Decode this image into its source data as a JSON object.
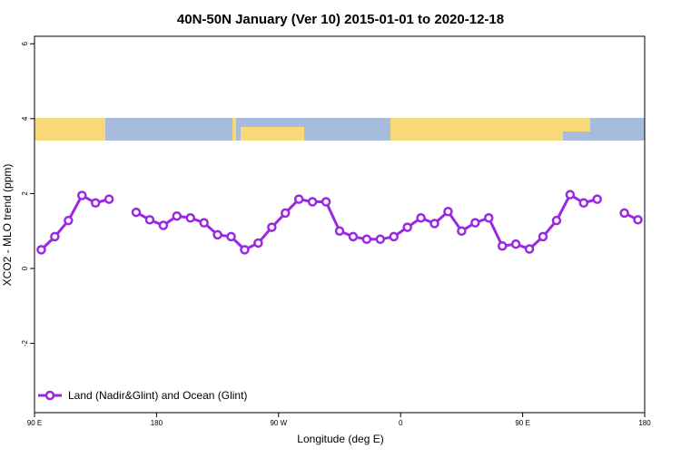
{
  "chart_data": {
    "type": "line",
    "title": "40N-50N January (Ver 10)   2015-01-01 to 2020-12-18",
    "x_label": "Longitude (deg E)",
    "y_label": "XCO2 - MLO trend (ppm)",
    "x": [
      95,
      105,
      115,
      125,
      135,
      145,
      155,
      165,
      175,
      185,
      195,
      205,
      215,
      225,
      235,
      245,
      255,
      265,
      275,
      285,
      295,
      305,
      315,
      325,
      335,
      345,
      355,
      365,
      375,
      385,
      395,
      405,
      415,
      425,
      435,
      445,
      455,
      465,
      475,
      485,
      495,
      505,
      515,
      525,
      535
    ],
    "series": [
      {
        "name": "Land (Nadir&Glint) and Ocean (Glint)",
        "color": "#9a28e0",
        "values": [
          0.5,
          0.85,
          1.28,
          1.95,
          1.75,
          1.85,
          null,
          1.5,
          1.3,
          1.15,
          1.4,
          1.35,
          1.22,
          0.9,
          0.85,
          0.5,
          0.68,
          1.1,
          1.48,
          1.85,
          1.78,
          1.78,
          1.0,
          0.85,
          0.78,
          0.78,
          0.85,
          1.1,
          1.35,
          1.2,
          1.52,
          1.0,
          1.22,
          1.35,
          0.6,
          0.65,
          0.52,
          0.85,
          1.28,
          1.97,
          1.75,
          1.85,
          null,
          1.48,
          1.3
        ]
      }
    ],
    "xlim": [
      90,
      540
    ],
    "xticks": [
      {
        "value": 90,
        "label": "90 E"
      },
      {
        "value": 180,
        "label": "180"
      },
      {
        "value": 270,
        "label": "90 W"
      },
      {
        "value": 360,
        "label": "0"
      },
      {
        "value": 450,
        "label": "90 E"
      },
      {
        "value": 540,
        "label": "180"
      }
    ],
    "ylim": [
      -3.85,
      6.2
    ],
    "yticks": [
      -2,
      0,
      2,
      4,
      6
    ],
    "legend": "bottom-left"
  }
}
